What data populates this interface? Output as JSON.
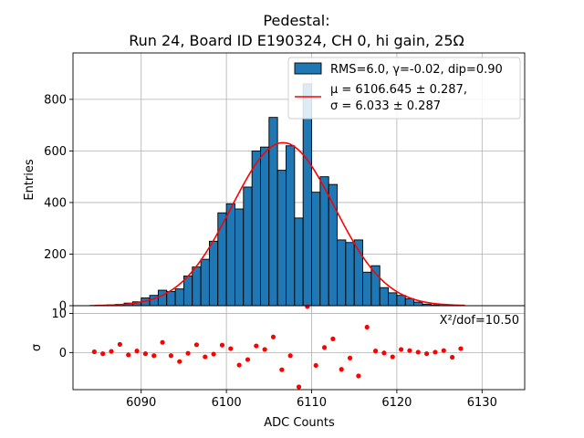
{
  "chart_data": {
    "type": "bar",
    "title_line1": "Pedestal:",
    "title_line2": "Run 24, Board ID E190324, CH 0, hi gain, 25Ω",
    "xlabel": "ADC Counts",
    "ylabel_top": "Entries",
    "ylabel_bottom": "σ",
    "xlim": [
      6082,
      6135
    ],
    "ylim_top": [
      0,
      980
    ],
    "ylim_bottom": [
      -9.5,
      12
    ],
    "x_ticks": [
      6090,
      6100,
      6110,
      6120,
      6130
    ],
    "y_ticks_top": [
      0,
      200,
      400,
      600,
      800
    ],
    "y_ticks_bottom": [
      0,
      10
    ],
    "grid": true,
    "legend_position": "top-right",
    "colors": {
      "bars": "#1f77b4",
      "fit": "#ff0000",
      "residuals": "#ff0000"
    },
    "legend": {
      "hist_label": "RMS=6.0, γ=-0.02, dip=0.90",
      "fit_label_line1": "μ = 6106.645 ± 0.287,",
      "fit_label_line2": "σ = 6.033 ± 0.287"
    },
    "chi2_label": "X²/dof=10.50",
    "fit": {
      "mu": 6106.645,
      "sigma": 6.033,
      "amplitude": 632,
      "x_range": [
        6084.5,
        6128
      ]
    },
    "hist": {
      "bin_width": 1,
      "bin_edges_start": 6084,
      "counts": [
        1,
        2,
        3,
        5,
        10,
        15,
        30,
        40,
        60,
        55,
        65,
        115,
        150,
        180,
        250,
        360,
        395,
        375,
        460,
        600,
        615,
        730,
        525,
        620,
        340,
        860,
        440,
        500,
        470,
        255,
        245,
        255,
        130,
        155,
        70,
        50,
        40,
        27,
        14,
        6,
        3,
        1,
        1,
        0
      ]
    },
    "residuals": {
      "x": [
        6084.5,
        6085.5,
        6086.5,
        6087.5,
        6088.5,
        6089.5,
        6090.5,
        6091.5,
        6092.5,
        6093.5,
        6094.5,
        6095.5,
        6096.5,
        6097.5,
        6098.5,
        6099.5,
        6100.5,
        6101.5,
        6102.5,
        6103.5,
        6104.5,
        6105.5,
        6106.5,
        6107.5,
        6108.5,
        6109.5,
        6110.5,
        6111.5,
        6112.5,
        6113.5,
        6114.5,
        6115.5,
        6116.5,
        6117.5,
        6118.5,
        6119.5,
        6120.5,
        6121.5,
        6122.5,
        6123.5,
        6124.5,
        6125.5,
        6126.5,
        6127.5
      ],
      "y": [
        0.2,
        -0.3,
        0.3,
        2.1,
        -0.6,
        0.4,
        -0.3,
        -0.8,
        2.6,
        -0.8,
        -2.3,
        -0.2,
        2.0,
        -1.1,
        -0.4,
        1.9,
        1.0,
        -3.2,
        -1.8,
        1.7,
        0.8,
        4.0,
        -4.4,
        -0.8,
        -8.8,
        11.8,
        -3.3,
        1.3,
        3.5,
        -4.3,
        -1.4,
        -6.0,
        6.5,
        0.4,
        -0.1,
        -1.1,
        0.8,
        0.5,
        0.1,
        -0.3,
        0.1,
        0.5,
        -1.2,
        1.0
      ]
    }
  }
}
